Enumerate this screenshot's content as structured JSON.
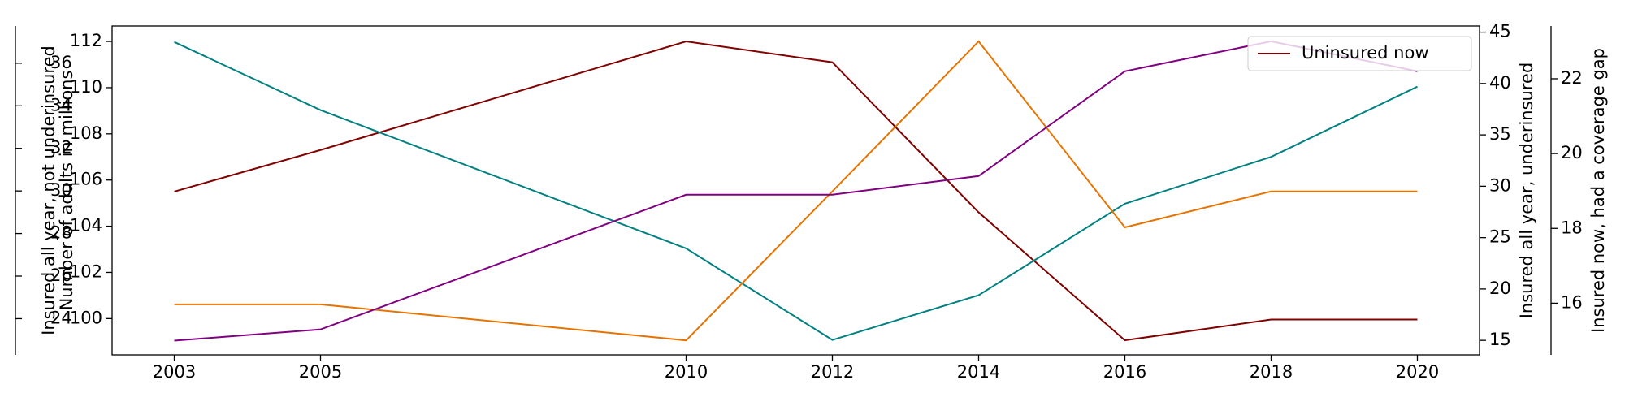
{
  "chart_data": {
    "type": "line",
    "x": [
      2003,
      2005,
      2010,
      2012,
      2014,
      2016,
      2018,
      2020
    ],
    "xlim": [
      2002.15,
      2020.85
    ],
    "xticks": [
      2003,
      2005,
      2010,
      2012,
      2014,
      2016,
      2018,
      2020
    ],
    "ylabel": "Number of adults in millions",
    "ylim": [
      98.43,
      112.67
    ],
    "yticks": [
      100,
      102,
      104,
      106,
      108,
      110,
      112
    ],
    "y2label": "Insured all year, not underinsured",
    "y2lim": [
      22.3,
      37.75
    ],
    "y2ticks": [
      24,
      26,
      28,
      30,
      32,
      34,
      36
    ],
    "y3label": "Insured all year, underinsured",
    "y3lim": [
      13.59,
      45.6
    ],
    "y3ticks": [
      15,
      20,
      25,
      30,
      35,
      40,
      45
    ],
    "y4label": "Insured now, had a coverage gap",
    "y4lim": [
      14.62,
      23.41
    ],
    "y4ticks": [
      16,
      18,
      20,
      22
    ],
    "legend": "upper right",
    "series": [
      {
        "name": "Uninsured now",
        "color": "#800000",
        "axis": "y",
        "values": [
          105.5,
          107.3,
          112.0,
          111.1,
          104.6,
          99.06,
          99.96,
          99.96
        ]
      },
      {
        "color": "#008080",
        "axis": "y2",
        "values": [
          37.0,
          33.8,
          27.3,
          23.0,
          25.1,
          29.4,
          31.6,
          34.9
        ]
      },
      {
        "color": "#e67300",
        "axis": "y3",
        "values": [
          18.5,
          18.5,
          15.0,
          29.5,
          44.1,
          26.0,
          29.5,
          29.5
        ]
      },
      {
        "color": "#800080",
        "axis": "y4",
        "values": [
          15.0,
          15.3,
          18.9,
          18.9,
          19.4,
          22.2,
          23.0,
          22.2
        ]
      }
    ]
  }
}
